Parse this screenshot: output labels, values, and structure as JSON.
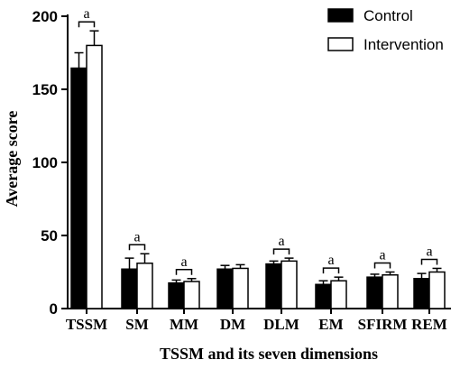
{
  "chart_data": {
    "type": "bar",
    "title": "",
    "xlabel": "TSSM and its seven dimensions",
    "ylabel": "Average score",
    "ylim": [
      0,
      200
    ],
    "yticks": [
      "0",
      "50",
      "100",
      "150",
      "200"
    ],
    "categories": [
      "TSSM",
      "SM",
      "MM",
      "DM",
      "DLM",
      "EM",
      "SFIRM",
      "REM"
    ],
    "series": [
      {
        "name": "Control",
        "color": "#000000",
        "values": [
          164.5,
          27,
          17.5,
          27,
          30.5,
          16.5,
          21.5,
          20.5
        ],
        "errors": [
          10.5,
          7.5,
          2,
          2.5,
          2,
          2.5,
          2,
          3.5
        ]
      },
      {
        "name": "Intervention",
        "color": "#ffffff",
        "values": [
          180,
          31,
          18.5,
          27.5,
          32.5,
          19,
          23,
          25
        ],
        "errors": [
          10,
          6.5,
          2,
          2.5,
          2,
          2.5,
          2,
          2.5
        ]
      }
    ],
    "significance": {
      "label": "a",
      "categories": [
        "TSSM",
        "SM",
        "MM",
        "DLM",
        "EM",
        "SFIRM",
        "REM"
      ]
    },
    "legend_position": "top-right",
    "grid": false
  }
}
